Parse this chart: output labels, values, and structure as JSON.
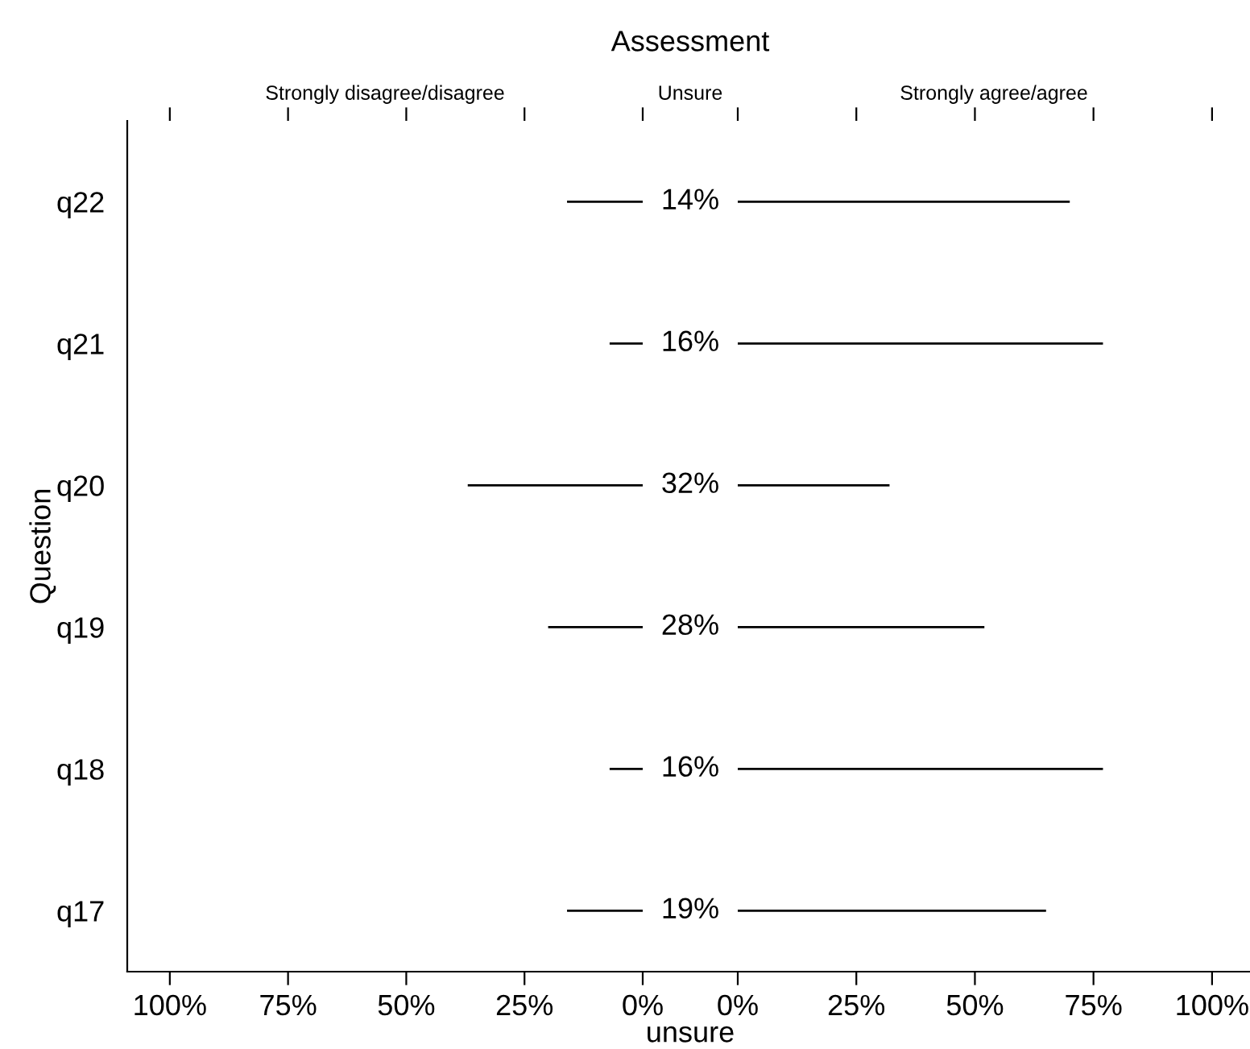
{
  "chart_data": [
    {
      "type": "bar",
      "orientation": "horizontal",
      "ylabel": "Question",
      "x2label": "Strongly disagree/disagree",
      "categories": [
        "q22",
        "q21",
        "q20",
        "q19",
        "q18",
        "q17"
      ],
      "series": [
        {
          "color": "#000000",
          "values": [
            16,
            7,
            37,
            20,
            7,
            16
          ]
        }
      ],
      "xlim": [
        109,
        0
      ],
      "xticks": [
        {
          "value": 100,
          "label": "100%"
        },
        {
          "value": 75,
          "label": "75%"
        },
        {
          "value": 50,
          "label": "50%"
        },
        {
          "value": 25,
          "label": "25%"
        },
        {
          "value": 0,
          "label": "0%"
        }
      ],
      "grid": false
    },
    {
      "type": "other",
      "title": "Assessment",
      "x2label": "Unsure",
      "xlabel": "unsure",
      "annotations": [
        "14%",
        "16%",
        "32%",
        "28%",
        "16%",
        "19%"
      ]
    },
    {
      "type": "bar",
      "orientation": "horizontal",
      "x2label": "Strongly agree/agree",
      "categories": [
        null,
        null,
        null,
        null,
        null,
        null
      ],
      "series": [
        {
          "color": "#000000",
          "values": [
            70,
            77,
            32,
            52,
            77,
            65
          ]
        }
      ],
      "xlim": [
        0,
        108
      ],
      "xticks": [
        {
          "value": 0,
          "label": "0%"
        },
        {
          "value": 25,
          "label": "25%"
        },
        {
          "value": 50,
          "label": "50%"
        },
        {
          "value": 75,
          "label": "75%"
        },
        {
          "value": 100,
          "label": "100%"
        }
      ],
      "grid": false
    }
  ]
}
